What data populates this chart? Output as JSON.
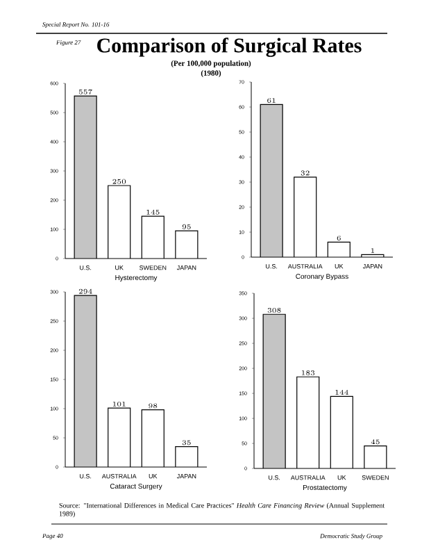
{
  "chart_data": [
    {
      "type": "bar",
      "title": "Comparison of Surgical Rates",
      "subtitle": "(Per 100,000 population)",
      "xlabel": "Hysterectomy",
      "categories": [
        "U.S.",
        "UK",
        "SWEDEN",
        "JAPAN"
      ],
      "values": [
        557,
        250,
        145,
        95
      ],
      "colors": [
        "#c4c4c4",
        "#ffffff",
        "#ffffff",
        "#ffffff"
      ],
      "ylim": [
        0,
        600
      ],
      "yticks": [
        0,
        100,
        200,
        300,
        400,
        500,
        600
      ],
      "data_labels": true,
      "annotations": [
        "(1980)",
        "Special Report No. 101-16",
        "Figure 27"
      ]
    },
    {
      "type": "bar",
      "xlabel": "Coronary Bypass",
      "categories": [
        "U.S.",
        "AUSTRALIA",
        "UK",
        "JAPAN"
      ],
      "values": [
        61,
        32,
        6,
        1
      ],
      "colors": [
        "#c4c4c4",
        "#ffffff",
        "#ffffff",
        "#ffffff"
      ],
      "ylim": [
        0,
        70
      ],
      "yticks": [
        0,
        10,
        20,
        30,
        40,
        50,
        60,
        70
      ],
      "data_labels": true
    },
    {
      "type": "bar",
      "xlabel": "Cataract Surgery",
      "categories": [
        "U.S.",
        "AUSTRALIA",
        "UK",
        "JAPAN"
      ],
      "values": [
        294,
        101,
        98,
        35
      ],
      "colors": [
        "#c4c4c4",
        "#ffffff",
        "#ffffff",
        "#ffffff"
      ],
      "ylim": [
        0,
        300
      ],
      "yticks": [
        0,
        50,
        100,
        150,
        200,
        250,
        300
      ],
      "data_labels": true
    },
    {
      "type": "bar",
      "xlabel": "Prostatectomy",
      "categories": [
        "U.S.",
        "AUSTRALIA",
        "UK",
        "SWEDEN"
      ],
      "values": [
        308,
        183,
        144,
        45
      ],
      "colors": [
        "#c4c4c4",
        "#ffffff",
        "#ffffff",
        "#ffffff"
      ],
      "ylim": [
        0,
        350
      ],
      "yticks": [
        0,
        50,
        100,
        150,
        200,
        250,
        300,
        350
      ],
      "data_labels": true,
      "annotations": [
        "Source: \"International Differences in Medical Care Practices\" *Health Care Financing Review* (Annual Supplement 1989)",
        "Page 40",
        "Democratic Study Group"
      ]
    }
  ]
}
